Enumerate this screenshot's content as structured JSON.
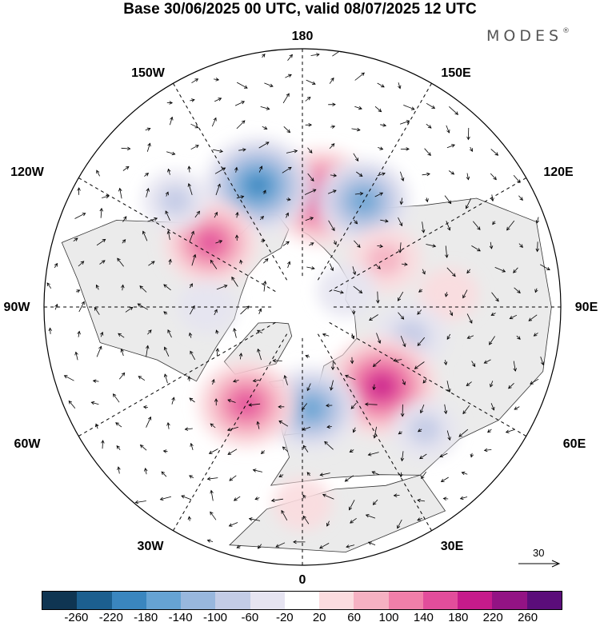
{
  "title": "Base 30/06/2025 00 UTC, valid 08/07/2025 12 UTC",
  "brand": "MODES",
  "brand_mark": "®",
  "longitude_labels": {
    "n180": "180",
    "w150": "150W",
    "e150": "150E",
    "w120": "120W",
    "e120": "120E",
    "w90": "90W",
    "e90": "90E",
    "w60": "60W",
    "e60": "60E",
    "w30": "30W",
    "e30": "30E",
    "s0": "0"
  },
  "reference_vector": {
    "value": "30",
    "icon": "arrow-right-icon"
  },
  "colorbar": {
    "colors": [
      "#0f3552",
      "#1c5f8f",
      "#3a86bf",
      "#66a3d3",
      "#98b7dd",
      "#c3cce6",
      "#e6e4f1",
      "#ffffff",
      "#fbdcdf",
      "#f6b1c2",
      "#f07fa9",
      "#e24d9b",
      "#c61b8b",
      "#931384",
      "#5b0d7a"
    ],
    "tick_labels": [
      "-260",
      "-220",
      "-180",
      "-140",
      "-100",
      "-60",
      "-20",
      "20",
      "60",
      "100",
      "140",
      "180",
      "220",
      "260"
    ]
  },
  "anomaly_centers": [
    {
      "lon_deg": 170,
      "lat_deg": 55,
      "value": 180
    },
    {
      "lon_deg": 150,
      "lat_deg": 52,
      "value": -140
    },
    {
      "lon_deg": -160,
      "lat_deg": 50,
      "value": -180
    },
    {
      "lon_deg": -125,
      "lat_deg": 55,
      "value": 140
    },
    {
      "lon_deg": -130,
      "lat_deg": 40,
      "value": -60
    },
    {
      "lon_deg": 120,
      "lat_deg": 60,
      "value": 80
    },
    {
      "lon_deg": 95,
      "lat_deg": 45,
      "value": 40
    },
    {
      "lon_deg": 75,
      "lat_deg": 55,
      "value": -80
    },
    {
      "lon_deg": 45,
      "lat_deg": 55,
      "value": 190
    },
    {
      "lon_deg": 45,
      "lat_deg": 38,
      "value": -60
    },
    {
      "lon_deg": 5,
      "lat_deg": 58,
      "value": -140
    },
    {
      "lon_deg": -30,
      "lat_deg": 55,
      "value": 150
    },
    {
      "lon_deg": -90,
      "lat_deg": 60,
      "value": -40
    },
    {
      "lon_deg": 0,
      "lat_deg": 32,
      "value": 40
    },
    {
      "lon_deg": 110,
      "lat_deg": 75,
      "value": -40
    }
  ]
}
